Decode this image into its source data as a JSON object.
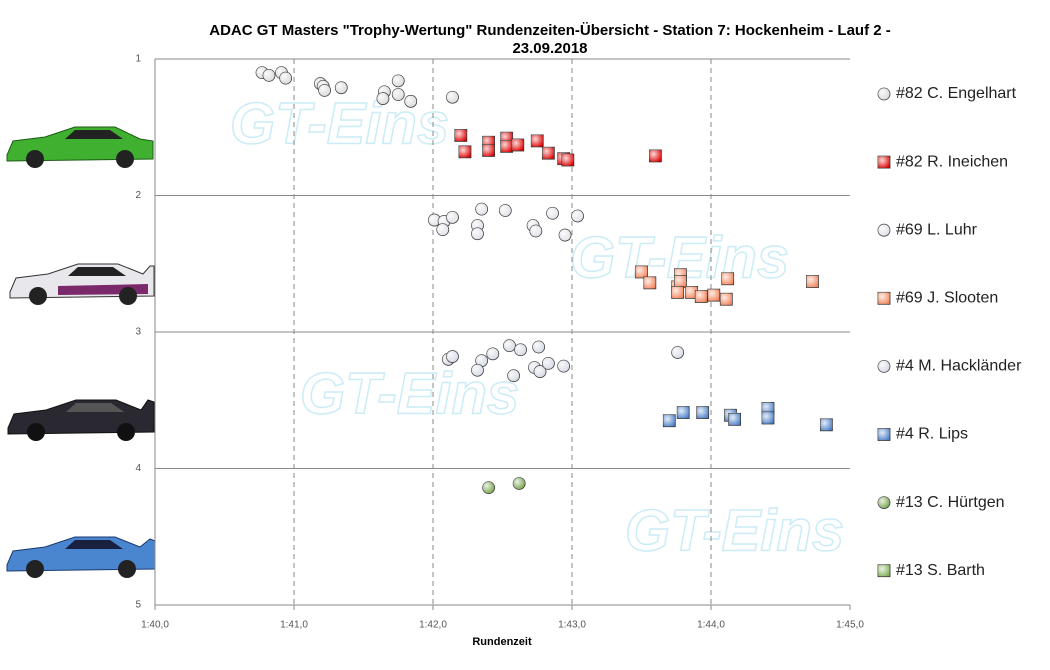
{
  "chart_data": {
    "type": "scatter",
    "title": "ADAC  GT Masters \"Trophy-Wertung\"  Rundenzeiten-Übersicht  - Station 7: Hockenheim  - Lauf 2 -",
    "subtitle": "23.09.2018",
    "x_label": "Rundenzeit",
    "watermark": "GT-Eins",
    "xlim": [
      100,
      105
    ],
    "xticks": [
      {
        "value": 100,
        "label": "1:40,0"
      },
      {
        "value": 101,
        "label": "1:41,0"
      },
      {
        "value": 102,
        "label": "1:42,0"
      },
      {
        "value": 103,
        "label": "1:43,0"
      },
      {
        "value": 104,
        "label": "1:44,0"
      },
      {
        "value": 105,
        "label": "1:45,0"
      }
    ],
    "ylim": [
      1,
      5
    ],
    "y_reversed": true,
    "yticks": [
      1,
      2,
      3,
      4,
      5
    ],
    "grid": true,
    "series": [
      {
        "name": "#82 C. Engelhart",
        "marker": "circle",
        "color": "#d9d9d9",
        "x": [
          100.77,
          100.82,
          100.91,
          100.94,
          101.19,
          101.21,
          101.22,
          101.34,
          101.65,
          101.64,
          101.75,
          101.75,
          101.84,
          102.14
        ],
        "y": [
          1.1,
          1.12,
          1.1,
          1.14,
          1.18,
          1.2,
          1.23,
          1.21,
          1.24,
          1.29,
          1.16,
          1.26,
          1.31,
          1.28
        ]
      },
      {
        "name": "#82 R. Ineichen",
        "marker": "square",
        "color": "#e00000",
        "x": [
          102.2,
          102.23,
          102.4,
          102.4,
          102.53,
          102.53,
          102.61,
          102.75,
          102.83,
          102.94,
          102.97,
          103.6
        ],
        "y": [
          1.56,
          1.68,
          1.61,
          1.67,
          1.58,
          1.64,
          1.63,
          1.6,
          1.69,
          1.73,
          1.74,
          1.71
        ]
      },
      {
        "name": "#69 L. Luhr",
        "marker": "circle",
        "color": "#e2dee8",
        "x": [
          102.01,
          102.08,
          102.07,
          102.14,
          102.32,
          102.32,
          102.35,
          102.52,
          102.72,
          102.74,
          102.86,
          102.95,
          103.04
        ],
        "y": [
          2.18,
          2.19,
          2.25,
          2.16,
          2.22,
          2.28,
          2.1,
          2.11,
          2.22,
          2.26,
          2.13,
          2.29,
          2.15
        ]
      },
      {
        "name": "#69 J. Slooten",
        "marker": "square",
        "color": "#f4845a",
        "x": [
          103.5,
          103.56,
          103.76,
          103.78,
          103.78,
          103.76,
          103.86,
          103.93,
          104.02,
          104.11,
          104.12,
          104.73
        ],
        "y": [
          2.56,
          2.64,
          2.67,
          2.58,
          2.63,
          2.71,
          2.71,
          2.74,
          2.73,
          2.76,
          2.61,
          2.63
        ]
      },
      {
        "name": "#4 M. Hackländer",
        "marker": "circle",
        "color": "#d4d8e4",
        "x": [
          102.11,
          102.14,
          102.35,
          102.43,
          102.32,
          102.55,
          102.58,
          102.63,
          102.73,
          102.76,
          102.77,
          102.83,
          102.94,
          103.76
        ],
        "y": [
          3.2,
          3.18,
          3.21,
          3.16,
          3.28,
          3.1,
          3.32,
          3.13,
          3.26,
          3.11,
          3.29,
          3.23,
          3.25,
          3.15
        ]
      },
      {
        "name": "#4 R. Lips",
        "marker": "square",
        "color": "#4a7ec8",
        "x": [
          103.7,
          103.8,
          103.94,
          104.14,
          104.17,
          104.41,
          104.41,
          104.83
        ],
        "y": [
          3.65,
          3.59,
          3.59,
          3.61,
          3.64,
          3.56,
          3.63,
          3.68
        ]
      },
      {
        "name": "#13 C. Hürtgen",
        "marker": "circle",
        "color": "#6fa040",
        "x": [
          102.4,
          102.62
        ],
        "y": [
          4.14,
          4.11
        ]
      },
      {
        "name": "#13 S. Barth",
        "marker": "square",
        "color": "#7cb050",
        "x": [],
        "y": []
      }
    ]
  }
}
